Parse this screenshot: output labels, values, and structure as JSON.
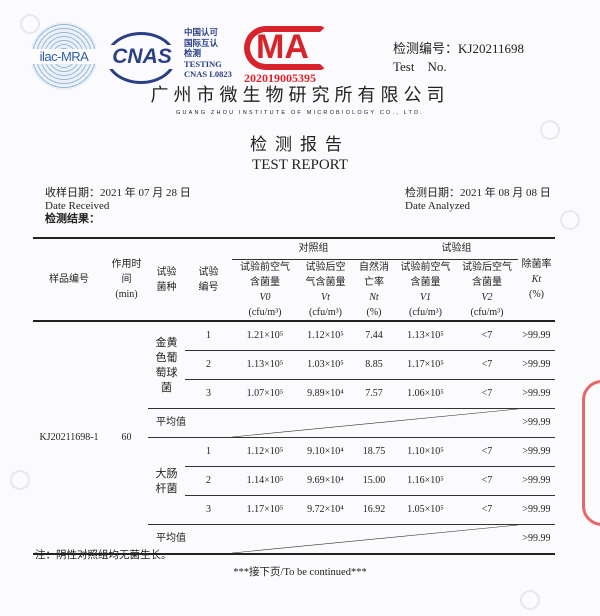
{
  "logos": {
    "ilac": "ilac-MRA",
    "cnas": "CNAS",
    "cnas_text": [
      "中国认可",
      "国际互认",
      "检测",
      "TESTING",
      "CNAS L0823"
    ],
    "cma": "MA",
    "cma_number": "202019005395"
  },
  "test_no": {
    "label": "检测编号：KJ20211698",
    "label_en": "Test    No."
  },
  "company": {
    "name": "广州市微生物研究所有限公司",
    "name_en": "GUANG ZHOU INSTITUTE OF MICROBIOLOGY CO., LTD."
  },
  "report": {
    "title": "检测报告",
    "title_en": "TEST REPORT"
  },
  "dates": {
    "received": "收样日期：2021 年 07 月 28 日",
    "received_en": "Date Received",
    "analyzed": "检测日期：2021 年 08 月 08 日",
    "analyzed_en": "Date Analyzed"
  },
  "results_label": "检测结果：",
  "table": {
    "headers": {
      "sample": "样品编号",
      "time": "作用时间(min)",
      "species": "试验菌种",
      "number": "试验编号",
      "control_group": "对照组",
      "test_group": "试验组",
      "v0": "试验前空气含菌量",
      "v0_sym": "V0",
      "vt": "试验后空气含菌量",
      "vt_sym": "Vt",
      "nt": "自然消亡率",
      "nt_sym": "Nt",
      "v1": "试验前空气含菌量",
      "v1_sym": "V1",
      "v2": "试验后空气含菌量",
      "v2_sym": "V2",
      "k": "除菌率",
      "k_sym": "Kt",
      "unit_cfu": "(cfu/m³)",
      "unit_pct": "(%)"
    },
    "sample_id": "KJ20211698-1",
    "time": "60",
    "average_label": "平均值",
    "groups": [
      {
        "species": "金黄色葡萄球菌",
        "rows": [
          {
            "no": "1",
            "v0": "1.21×10⁵",
            "vt": "1.12×10⁵",
            "nt": "7.44",
            "v1": "1.13×10⁵",
            "v2": "<7",
            "k": ">99.99"
          },
          {
            "no": "2",
            "v0": "1.13×10⁵",
            "vt": "1.03×10⁵",
            "nt": "8.85",
            "v1": "1.17×10⁵",
            "v2": "<7",
            "k": ">99.99"
          },
          {
            "no": "3",
            "v0": "1.07×10⁵",
            "vt": "9.89×10⁴",
            "nt": "7.57",
            "v1": "1.06×10⁵",
            "v2": "<7",
            "k": ">99.99"
          }
        ],
        "average": ">99.99"
      },
      {
        "species": "大肠杆菌",
        "rows": [
          {
            "no": "1",
            "v0": "1.12×10⁵",
            "vt": "9.10×10⁴",
            "nt": "18.75",
            "v1": "1.10×10⁵",
            "v2": "<7",
            "k": ">99.99"
          },
          {
            "no": "2",
            "v0": "1.14×10⁵",
            "vt": "9.69×10⁴",
            "nt": "15.00",
            "v1": "1.16×10⁵",
            "v2": "<7",
            "k": ">99.99"
          },
          {
            "no": "3",
            "v0": "1.17×10⁵",
            "vt": "9.72×10⁴",
            "nt": "16.92",
            "v1": "1.05×10⁵",
            "v2": "<7",
            "k": ">99.99"
          }
        ],
        "average": ">99.99"
      }
    ]
  },
  "note": "注：阴性对照组均无菌生长。",
  "continued": "***接下页/To be continued***"
}
